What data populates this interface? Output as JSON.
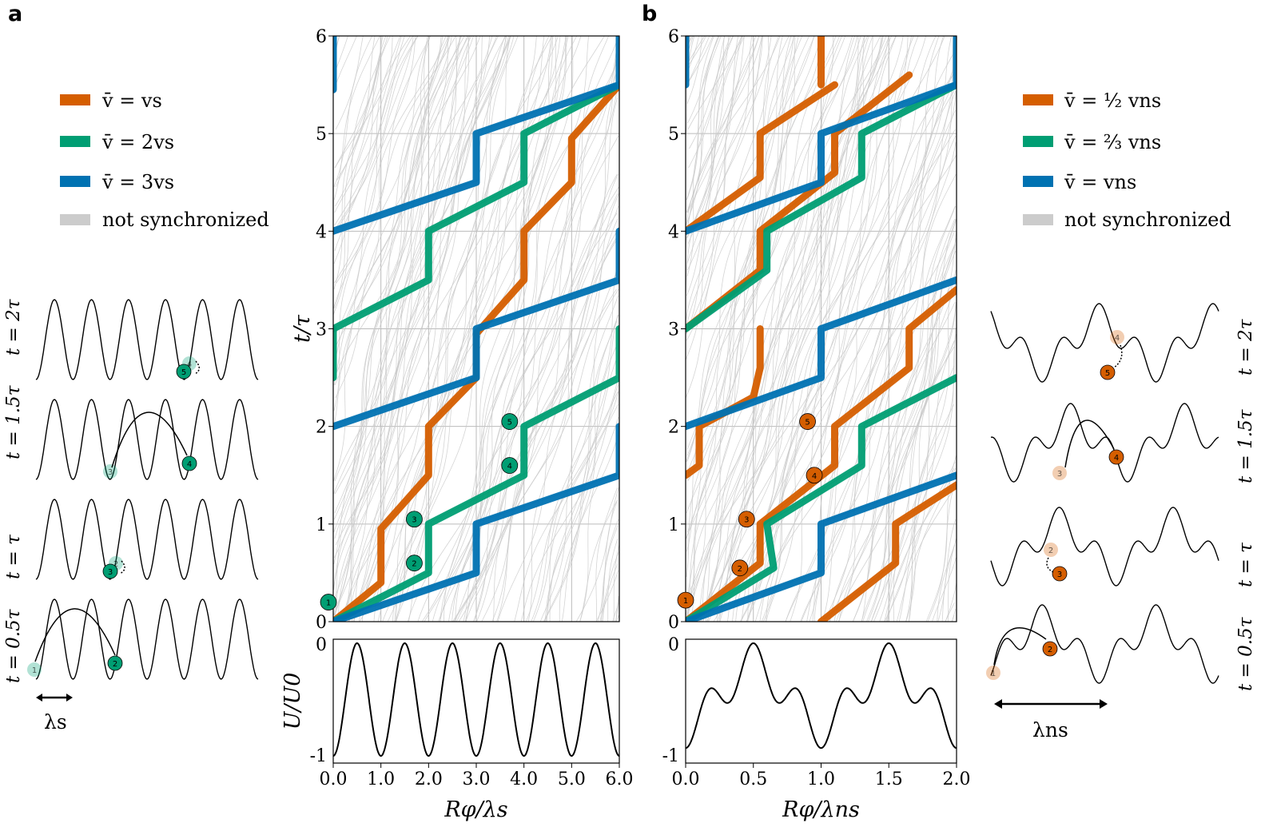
{
  "panel_a": {
    "label": "a",
    "legend": [
      {
        "label": "v̄ = vs",
        "color": "#d55e00"
      },
      {
        "label": "v̄ = 2vs",
        "color": "#009e73"
      },
      {
        "label": "v̄ = 3vs",
        "color": "#0072b2"
      },
      {
        "label": "not synchronized",
        "color": "#cccccc"
      }
    ],
    "snapshots": [
      "t = 2τ",
      "t = 1.5τ",
      "t = τ",
      "t = 0.5τ"
    ],
    "lambda_label": "λs",
    "particle_numbers": [
      "1",
      "2",
      "3",
      "4",
      "5"
    ]
  },
  "panel_b": {
    "label": "b",
    "legend": [
      {
        "label": "v̄ = ½ vns",
        "color": "#d55e00"
      },
      {
        "label": "v̄ = ⅔ vns",
        "color": "#009e73"
      },
      {
        "label": "v̄ = vns",
        "color": "#0072b2"
      },
      {
        "label": "not synchronized",
        "color": "#cccccc"
      }
    ],
    "snapshots": [
      "t = 2τ",
      "t = 1.5τ",
      "t = τ",
      "t = 0.5τ"
    ],
    "lambda_label": "λns",
    "particle_numbers": [
      "1",
      "2",
      "3",
      "4",
      "5"
    ]
  },
  "colors": {
    "orange": "#d55e00",
    "green": "#009e73",
    "blue": "#0072b2",
    "gray": "#cccccc"
  },
  "chart_data": [
    {
      "type": "line",
      "panel": "a",
      "title": "",
      "xlabel": "Rφ/λs",
      "ylabel": "t/τ",
      "xlim": [
        0,
        6
      ],
      "ylim": [
        0,
        6
      ],
      "xticks": [
        "0.0",
        "1.0",
        "2.0",
        "3.0",
        "4.0",
        "5.0",
        "6.0"
      ],
      "yticks": [
        "0",
        "1",
        "2",
        "3",
        "4",
        "5",
        "6"
      ],
      "grid": true,
      "series": [
        {
          "name": "v̄ = vs",
          "color": "orange",
          "segments": [
            [
              [
                0,
                0
              ],
              [
                1,
                0.4
              ],
              [
                1,
                0.95
              ],
              [
                2,
                1.5
              ],
              [
                2,
                2.0
              ],
              [
                3,
                2.5
              ],
              [
                3,
                2.95
              ],
              [
                4,
                3.5
              ],
              [
                4,
                4.0
              ],
              [
                5,
                4.5
              ],
              [
                5,
                4.95
              ],
              [
                6,
                5.5
              ]
            ]
          ]
        },
        {
          "name": "v̄ = 2vs",
          "color": "green",
          "segments": [
            [
              [
                0,
                0
              ],
              [
                2,
                0.5
              ],
              [
                2,
                1.0
              ],
              [
                4,
                1.5
              ],
              [
                4,
                2.0
              ],
              [
                6,
                2.5
              ],
              [
                6,
                3.0
              ]
            ],
            [
              [
                0,
                3.0
              ],
              [
                2,
                3.5
              ],
              [
                2,
                4.0
              ],
              [
                4,
                4.5
              ],
              [
                4,
                5.0
              ],
              [
                6,
                5.5
              ]
            ],
            [
              [
                0,
                2.5
              ],
              [
                0,
                3.0
              ]
            ]
          ]
        },
        {
          "name": "v̄ = 3vs",
          "color": "blue",
          "segments": [
            [
              [
                0,
                0
              ],
              [
                3,
                0.5
              ],
              [
                3,
                1.0
              ],
              [
                6,
                1.5
              ],
              [
                6,
                2.0
              ]
            ],
            [
              [
                0,
                2.0
              ],
              [
                3,
                2.5
              ],
              [
                3,
                3.0
              ],
              [
                6,
                3.5
              ],
              [
                6,
                4.0
              ]
            ],
            [
              [
                0,
                4.0
              ],
              [
                3,
                4.5
              ],
              [
                3,
                5.0
              ],
              [
                6,
                5.5
              ],
              [
                6,
                6.0
              ]
            ],
            [
              [
                0,
                5.45
              ],
              [
                0,
                6.0
              ]
            ]
          ]
        }
      ],
      "markers": [
        {
          "n": "1",
          "x": -0.1,
          "y": 0.2
        },
        {
          "n": "2",
          "x": 1.7,
          "y": 0.6
        },
        {
          "n": "3",
          "x": 1.7,
          "y": 1.05
        },
        {
          "n": "4",
          "x": 3.7,
          "y": 1.6
        },
        {
          "n": "5",
          "x": 3.7,
          "y": 2.05
        }
      ],
      "potential": {
        "ylabel": "U/U0",
        "xlim": [
          0,
          6
        ],
        "yticks": [
          "0",
          "-1"
        ],
        "formula": "U(x) = -cos²(πx)"
      }
    },
    {
      "type": "line",
      "panel": "b",
      "title": "",
      "xlabel": "Rφ/λns",
      "ylabel": "",
      "xlim": [
        0,
        2
      ],
      "ylim": [
        0,
        6
      ],
      "xticks": [
        "0.0",
        "0.5",
        "1.0",
        "1.5",
        "2.0"
      ],
      "yticks": [
        "0",
        "1",
        "2",
        "3",
        "4",
        "5",
        "6"
      ],
      "grid": true,
      "series": [
        {
          "name": "v̄ = ½ vns",
          "color": "orange",
          "segments": [
            [
              [
                0,
                0
              ],
              [
                0.55,
                0.6
              ],
              [
                0.55,
                1.0
              ],
              [
                1.1,
                1.6
              ],
              [
                1.1,
                2.0
              ],
              [
                1.65,
                2.6
              ],
              [
                1.65,
                3.0
              ],
              [
                2.0,
                3.4
              ]
            ],
            [
              [
                0,
                3.0
              ],
              [
                0.55,
                3.6
              ],
              [
                0.55,
                4.0
              ],
              [
                1.1,
                4.6
              ],
              [
                1.1,
                5.0
              ],
              [
                1.65,
                5.6
              ]
            ],
            [
              [
                0,
                1.5
              ],
              [
                0.1,
                1.6
              ],
              [
                0.1,
                2.0
              ],
              [
                0.5,
                2.3
              ],
              [
                0.55,
                2.6
              ],
              [
                0.55,
                3.0
              ]
            ],
            [
              [
                0,
                4.0
              ],
              [
                0.55,
                4.55
              ],
              [
                0.55,
                5.0
              ],
              [
                1.1,
                5.5
              ]
            ],
            [
              [
                1.0,
                0
              ],
              [
                1.55,
                0.6
              ],
              [
                1.55,
                1.0
              ],
              [
                2.0,
                1.4
              ]
            ],
            [
              [
                1.0,
                5.5
              ],
              [
                1.0,
                6.0
              ]
            ]
          ]
        },
        {
          "name": "v̄ = ⅔ vns",
          "color": "green",
          "segments": [
            [
              [
                0,
                0
              ],
              [
                0.65,
                0.55
              ],
              [
                0.6,
                1.0
              ],
              [
                1.3,
                1.6
              ],
              [
                1.3,
                2.0
              ],
              [
                2.0,
                2.5
              ]
            ],
            [
              [
                0,
                3.0
              ],
              [
                0.6,
                3.6
              ],
              [
                0.6,
                4.0
              ],
              [
                1.3,
                4.55
              ],
              [
                1.3,
                5.0
              ],
              [
                2.0,
                5.5
              ]
            ]
          ]
        },
        {
          "name": "v̄ = vns",
          "color": "blue",
          "segments": [
            [
              [
                0,
                0
              ],
              [
                1.0,
                0.5
              ],
              [
                1.0,
                1.0
              ],
              [
                2.0,
                1.5
              ]
            ],
            [
              [
                0,
                2.0
              ],
              [
                1.0,
                2.5
              ],
              [
                1.0,
                3.0
              ],
              [
                2.0,
                3.5
              ]
            ],
            [
              [
                0,
                4.0
              ],
              [
                1.0,
                4.5
              ],
              [
                1.0,
                5.0
              ],
              [
                2.0,
                5.5
              ]
            ],
            [
              [
                0,
                5.5
              ],
              [
                0,
                6.0
              ]
            ],
            [
              [
                2.0,
                5.5
              ],
              [
                2.0,
                6.0
              ]
            ]
          ]
        }
      ],
      "markers": [
        {
          "n": "1",
          "x": 0.0,
          "y": 0.22
        },
        {
          "n": "2",
          "x": 0.4,
          "y": 0.55
        },
        {
          "n": "3",
          "x": 0.45,
          "y": 1.05
        },
        {
          "n": "4",
          "x": 0.95,
          "y": 1.5
        },
        {
          "n": "5",
          "x": 0.9,
          "y": 2.05
        }
      ],
      "potential": {
        "ylabel": "",
        "xlim": [
          0,
          2
        ],
        "yticks": [
          "0",
          "-1"
        ],
        "formula": "non-symmetric double well"
      }
    }
  ]
}
